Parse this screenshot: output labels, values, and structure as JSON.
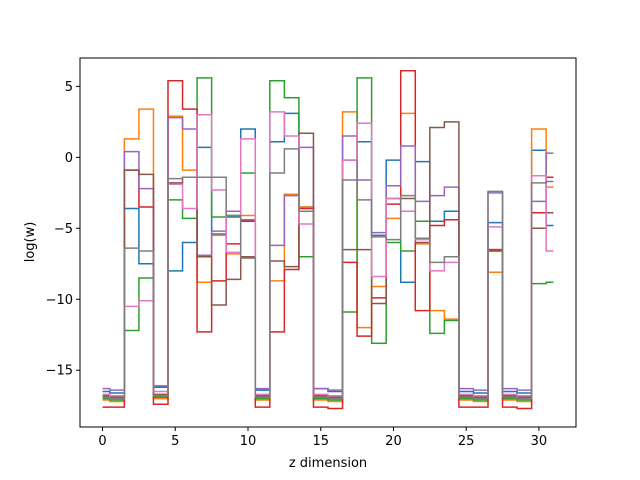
{
  "chart_data": {
    "type": "line",
    "step": "mid",
    "xlabel": "z dimension",
    "ylabel": "log(w)",
    "xlim": [
      -1.55,
      32.55
    ],
    "ylim": [
      -19.0,
      7.0
    ],
    "xticks": [
      0,
      5,
      10,
      15,
      20,
      25,
      30
    ],
    "yticks": [
      -15,
      -10,
      -5,
      0,
      5
    ],
    "grid": false,
    "x": [
      0,
      1,
      2,
      3,
      4,
      5,
      6,
      7,
      8,
      9,
      10,
      11,
      12,
      13,
      14,
      15,
      16,
      17,
      18,
      19,
      20,
      21,
      22,
      23,
      24,
      25,
      26,
      27,
      28,
      29,
      30,
      31
    ],
    "series": [
      {
        "color": "#1f77b4",
        "values": [
          -16.5,
          -16.6,
          -3.6,
          -7.5,
          -16.2,
          -8.0,
          -6.0,
          0.7,
          -5.4,
          -4.2,
          2.0,
          -16.4,
          1.1,
          3.1,
          -3.5,
          -16.3,
          -16.5,
          -0.2,
          1.1,
          -5.5,
          -0.2,
          -8.8,
          -0.3,
          -4.5,
          -3.8,
          -16.5,
          -16.6,
          -4.6,
          -16.5,
          -16.6,
          0.5,
          -4.8
        ]
      },
      {
        "color": "#ff7f0e",
        "values": [
          -17.1,
          -17.2,
          1.3,
          3.4,
          -17.0,
          2.9,
          -0.9,
          -8.8,
          -5.5,
          -6.8,
          -4.1,
          -17.1,
          -8.7,
          -2.6,
          -3.5,
          -17.1,
          -17.2,
          3.2,
          -12.0,
          -9.1,
          -4.3,
          3.1,
          -6.1,
          -10.8,
          -11.4,
          -17.1,
          -17.2,
          -8.1,
          -17.1,
          -17.2,
          2.0,
          -2.1
        ]
      },
      {
        "color": "#2ca02c",
        "values": [
          -17.0,
          -17.1,
          -12.2,
          -8.5,
          -16.9,
          -3.0,
          -4.3,
          5.6,
          -4.2,
          -4.1,
          -1.1,
          -17.0,
          5.4,
          4.2,
          -7.0,
          -17.0,
          -17.1,
          -10.9,
          5.6,
          -13.1,
          -6.0,
          -6.6,
          -4.5,
          -12.4,
          -11.5,
          -17.0,
          -17.1,
          -6.5,
          -17.0,
          -17.1,
          -8.9,
          -8.8
        ]
      },
      {
        "color": "#d62728",
        "values": [
          -17.6,
          -17.6,
          -0.9,
          -3.5,
          -17.4,
          5.4,
          3.4,
          -12.3,
          -8.7,
          -6.1,
          -4.5,
          -17.6,
          -12.3,
          -7.9,
          -3.6,
          -17.6,
          -17.7,
          -7.4,
          -12.6,
          -9.9,
          -3.3,
          6.1,
          -10.8,
          -4.8,
          -4.4,
          -17.6,
          -17.6,
          -6.6,
          -17.6,
          -17.7,
          -3.9,
          -1.4
        ]
      },
      {
        "color": "#9467bd",
        "values": [
          -16.3,
          -16.4,
          0.4,
          -2.2,
          -16.1,
          2.8,
          2.0,
          -6.9,
          -5.2,
          -3.8,
          -4.4,
          -16.3,
          -6.2,
          -2.7,
          0.7,
          -16.3,
          -16.4,
          1.5,
          -1.6,
          -5.3,
          -2.0,
          0.8,
          -3.1,
          -2.7,
          -2.1,
          -16.3,
          -16.4,
          -2.5,
          -16.3,
          -16.4,
          -3.1,
          0.3
        ]
      },
      {
        "color": "#8c564b",
        "values": [
          -16.8,
          -16.9,
          -0.9,
          -1.2,
          -16.7,
          -1.8,
          -1.4,
          -7.0,
          -10.4,
          -8.6,
          -7.0,
          -16.8,
          -7.3,
          -7.7,
          1.7,
          -16.8,
          -16.9,
          -6.5,
          -6.5,
          -10.3,
          -2.9,
          -2.9,
          -6.0,
          2.1,
          2.5,
          -16.8,
          -16.9,
          -6.5,
          -16.8,
          -16.9,
          -5.0,
          -3.9
        ]
      },
      {
        "color": "#e377c2",
        "values": [
          -16.7,
          -16.8,
          -10.5,
          -10.1,
          -16.5,
          -1.9,
          -3.6,
          3.0,
          -2.3,
          -6.7,
          1.3,
          -16.7,
          3.2,
          1.5,
          -4.7,
          -16.7,
          -16.8,
          -0.2,
          2.4,
          -8.4,
          -2.9,
          -3.8,
          -5.8,
          -8.0,
          -7.4,
          -16.7,
          -16.8,
          -4.9,
          -16.7,
          -16.8,
          -1.3,
          -6.6
        ]
      },
      {
        "color": "#7f7f7f",
        "values": [
          -16.9,
          -17.0,
          -6.4,
          -6.6,
          -16.8,
          -1.5,
          -1.4,
          -1.4,
          -1.4,
          -4.1,
          -7.1,
          -16.9,
          -1.1,
          0.6,
          -3.8,
          -16.9,
          -17.0,
          -1.6,
          -3.0,
          -5.6,
          -5.8,
          -2.7,
          -5.7,
          -7.4,
          -7.0,
          -16.9,
          -17.0,
          -2.4,
          -16.9,
          -17.0,
          -1.8,
          -1.7
        ]
      }
    ]
  }
}
